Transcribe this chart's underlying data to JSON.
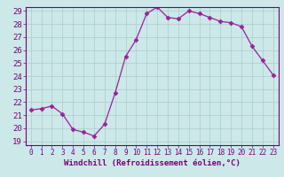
{
  "x": [
    0,
    1,
    2,
    3,
    4,
    5,
    6,
    7,
    8,
    9,
    10,
    11,
    12,
    13,
    14,
    15,
    16,
    17,
    18,
    19,
    20,
    21,
    22,
    23
  ],
  "y": [
    21.4,
    21.5,
    21.7,
    21.1,
    19.9,
    19.7,
    19.4,
    20.3,
    22.7,
    25.5,
    26.8,
    28.8,
    29.3,
    28.5,
    28.4,
    29.0,
    28.8,
    28.5,
    28.2,
    28.1,
    27.8,
    26.3,
    25.2,
    24.1
  ],
  "line_color": "#992299",
  "marker": "D",
  "marker_size": 2.5,
  "bg_color": "#cce8e8",
  "grid_color": "#aacccc",
  "xlabel": "Windchill (Refroidissement éolien,°C)",
  "ylim": [
    19,
    29
  ],
  "xlim": [
    -0.5,
    23.5
  ],
  "yticks": [
    19,
    20,
    21,
    22,
    23,
    24,
    25,
    26,
    27,
    28,
    29
  ],
  "xticks": [
    0,
    1,
    2,
    3,
    4,
    5,
    6,
    7,
    8,
    9,
    10,
    11,
    12,
    13,
    14,
    15,
    16,
    17,
    18,
    19,
    20,
    21,
    22,
    23
  ],
  "tick_color": "#770077",
  "label_color": "#770077",
  "ytick_fontsize": 6.5,
  "xtick_fontsize": 5.5,
  "xlabel_fontsize": 6.5
}
